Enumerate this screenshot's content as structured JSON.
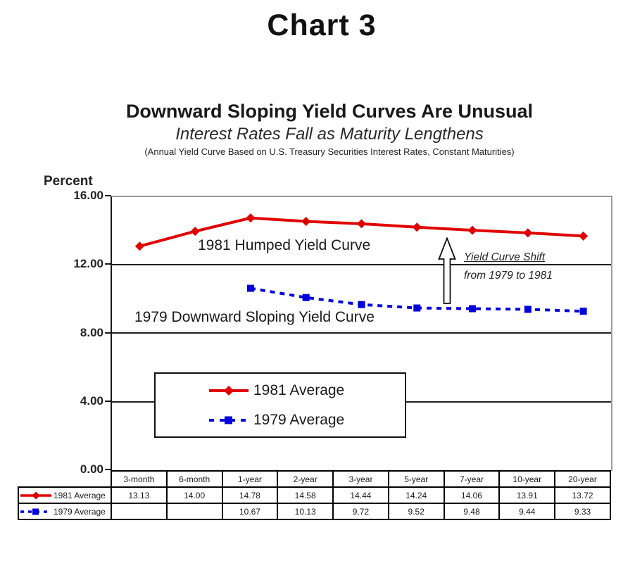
{
  "page": {
    "chart_number": "Chart 3"
  },
  "header": {
    "title": "Downward Sloping Yield Curves Are Unusual",
    "subtitle": "Interest Rates Fall as Maturity Lengthens",
    "note": "(Annual Yield Curve Based on U.S. Treasury Securities Interest Rates, Constant Maturities)"
  },
  "chart_data": {
    "type": "line",
    "y_axis_title": "Percent",
    "ylim": [
      0,
      16
    ],
    "y_ticks": [
      "16.00",
      "12.00",
      "8.00",
      "4.00",
      "0.00"
    ],
    "grid": "horizontal",
    "legend_position": "inside-lower-left-box",
    "categories": [
      "3-month",
      "6-month",
      "1-year",
      "2-year",
      "3-year",
      "5-year",
      "7-year",
      "10-year",
      "20-year"
    ],
    "series": [
      {
        "name": "1981 Average",
        "color": "#e00000",
        "style": "solid",
        "marker": "diamond",
        "values": [
          13.13,
          14.0,
          14.78,
          14.58,
          14.44,
          14.24,
          14.06,
          13.91,
          13.72
        ]
      },
      {
        "name": "1979 Average",
        "color": "#0000dd",
        "style": "dashed",
        "marker": "square",
        "values": [
          null,
          null,
          10.67,
          10.13,
          9.72,
          9.52,
          9.48,
          9.44,
          9.33
        ]
      }
    ],
    "annotations": {
      "line1981": "1981 Humped Yield Curve",
      "line1979": "1979 Downward Sloping Yield Curve",
      "shift_line1": "Yield Curve Shift",
      "shift_line2": "from 1979 to 1981"
    }
  },
  "table": {
    "header": [
      "3-month",
      "6-month",
      "1-year",
      "2-year",
      "3-year",
      "5-year",
      "7-year",
      "10-year",
      "20-year"
    ],
    "rows": [
      {
        "label": "1981 Average",
        "values": [
          "13.13",
          "14.00",
          "14.78",
          "14.58",
          "14.44",
          "14.24",
          "14.06",
          "13.91",
          "13.72"
        ]
      },
      {
        "label": "1979 Average",
        "values": [
          "",
          "",
          "10.67",
          "10.13",
          "9.72",
          "9.52",
          "9.48",
          "9.44",
          "9.33"
        ]
      }
    ]
  }
}
